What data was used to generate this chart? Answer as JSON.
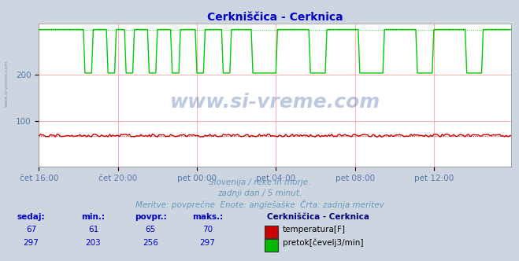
{
  "title": "Cerkniščica - Cerknica",
  "title_color": "#0000cc",
  "bg_color": "#ccd5e0",
  "plot_bg_color": "#ffffff",
  "grid_color": "#ffb0b0",
  "xlabel_color": "#5577aa",
  "ylabel_color": "#5577aa",
  "x_tick_labels": [
    "čet 16:00",
    "čet 20:00",
    "pet 00:00",
    "pet 04:00",
    "pet 08:00",
    "pet 12:00"
  ],
  "x_tick_positions": [
    0,
    48,
    96,
    144,
    192,
    240
  ],
  "y_ticks": [
    100,
    200
  ],
  "ylim": [
    0,
    310
  ],
  "xlim": [
    0,
    287
  ],
  "temp_color": "#cc0000",
  "flow_color": "#00cc00",
  "height_color": "#0000cc",
  "watermark": "www.si-vreme.com",
  "subtitle1": "Slovenija / reke in morje.",
  "subtitle2": "zadnji dan / 5 minut.",
  "subtitle3": "Meritve: povprečne  Enote: anglešaške  Črta: zadnja meritev",
  "subtitle_color": "#6699bb",
  "legend_title": "Cerkniščica - Cerknica",
  "legend_title_color": "#000077",
  "legend_labels": [
    "temperatura[F]",
    "pretok[čevelj3/min]"
  ],
  "legend_colors": [
    "#cc0000",
    "#00bb00"
  ],
  "table_headers": [
    "sedaj:",
    "min.:",
    "povpr.:",
    "maks.:"
  ],
  "table_values": [
    [
      67,
      61,
      65,
      70
    ],
    [
      297,
      203,
      256,
      297
    ]
  ],
  "table_color": "#0000cc",
  "n_points": 288,
  "figwidth": 6.59,
  "figheight": 3.32,
  "dpi": 100
}
